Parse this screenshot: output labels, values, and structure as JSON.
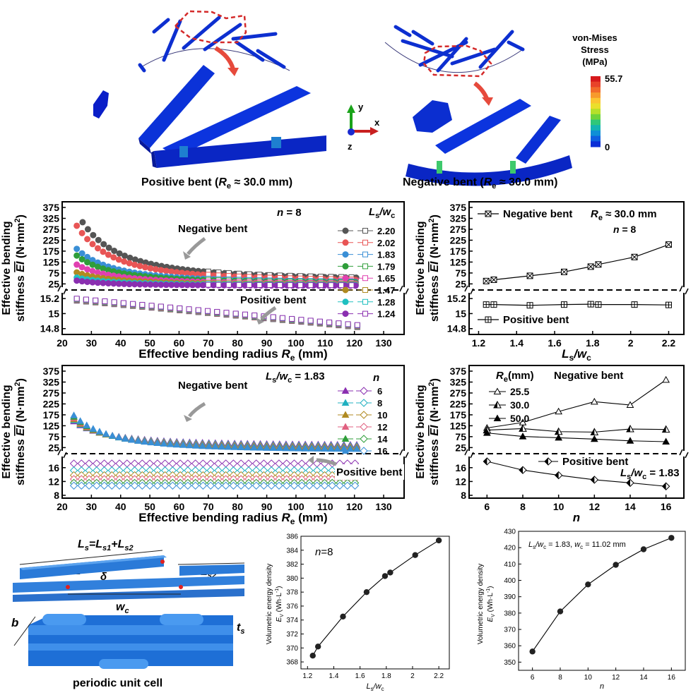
{
  "top": {
    "caption_left": "Positive bent (Re ≈ 30.0 mm)",
    "caption_left_parts": [
      "Positive bent (",
      "R",
      "e",
      " ≈ 30.0 mm)"
    ],
    "caption_right_parts": [
      "Negative bent (",
      "R",
      "e",
      " ≈ 30.0 mm)"
    ],
    "axes": {
      "y": "y",
      "x": "x",
      "z": "z"
    },
    "colorbar": {
      "title_lines": [
        "von-Mises",
        "Stress",
        "(MPa)"
      ],
      "max_label": "55.7",
      "min_label": "0",
      "colors": [
        "#d7191c",
        "#e8432a",
        "#f26b2a",
        "#f79a2c",
        "#fbc531",
        "#eadf2c",
        "#b6e02a",
        "#6fd33a",
        "#2fc77a",
        "#13b3b3",
        "#0f8fd6",
        "#0f5fe0",
        "#0b2ed6"
      ]
    }
  },
  "colors": {
    "s220": "#555555",
    "s202": "#e85555",
    "s183": "#3a8fd6",
    "s179": "#2f9e3a",
    "s165": "#e040b0",
    "s147": "#b08a20",
    "s128": "#20c0c0",
    "s124": "#8a2fb0",
    "n6": "#8a2fb0",
    "n8": "#20b0c0",
    "n10": "#b08a20",
    "n12": "#e06080",
    "n14": "#2f9e3a",
    "n16": "#3a8fd6",
    "line": "#000000"
  },
  "chart_data": [
    {
      "type": "scatter",
      "id": "A",
      "ylabel_lines": [
        "Effective bending",
        "stiffness EI (N·mm2)"
      ],
      "xlabel": "Effective bending radius Re (mm)",
      "annotation": "n = 8",
      "legend_title": "Ls/wc",
      "legend": [
        "2.20",
        "2.02",
        "1.83",
        "1.79",
        "1.65",
        "1.47",
        "1.28",
        "1.24"
      ],
      "upper_label": "Negative bent",
      "lower_label": "Positive bent",
      "x_ticks": [
        20,
        30,
        40,
        50,
        60,
        70,
        80,
        90,
        100,
        110,
        120,
        130
      ],
      "upper_ticks": [
        25,
        75,
        125,
        175,
        225,
        275,
        325,
        375
      ],
      "lower_ticks": [
        14.8,
        15.0,
        15.2
      ],
      "xlim": [
        20,
        137
      ],
      "upper_ylim": [
        10,
        375
      ],
      "lower_ylim": [
        14.76,
        15.22
      ],
      "upper_series": [
        {
          "name": "2.20",
          "a": 6500,
          "c": 40,
          "x0": 27
        },
        {
          "name": "2.02",
          "a": 5400,
          "c": 32,
          "x0": 25
        },
        {
          "name": "1.83",
          "a": 3300,
          "c": 27,
          "x0": 25
        },
        {
          "name": "1.79",
          "a": 2700,
          "c": 25,
          "x0": 25
        },
        {
          "name": "1.65",
          "a": 1900,
          "c": 22,
          "x0": 25
        },
        {
          "name": "1.47",
          "a": 1200,
          "c": 20,
          "x0": 25
        },
        {
          "name": "1.28",
          "a": 750,
          "c": 18,
          "x0": 25
        },
        {
          "name": "1.24",
          "a": 500,
          "c": 16,
          "x0": 25
        }
      ],
      "lower_series": {
        "x0": 25,
        "x1": 122,
        "y0": 15.185,
        "y1": 14.83
      }
    },
    {
      "type": "line",
      "id": "B",
      "ylabel_lines": [
        "Effective bending",
        "stiffness EI (N·mm2)"
      ],
      "xlabel": "Ls/wc",
      "annotation_lines": [
        "Re ≈ 30.0 mm",
        "n = 8"
      ],
      "upper_label": "Negative bent",
      "lower_label": "Positive bent",
      "x": [
        1.24,
        1.28,
        1.47,
        1.65,
        1.79,
        1.83,
        2.02,
        2.2
      ],
      "x_ticks": [
        1.2,
        1.4,
        1.6,
        1.8,
        2.0,
        2.2
      ],
      "xlim": [
        1.15,
        2.28
      ],
      "upper_ticks": [
        25,
        75,
        125,
        175,
        225,
        275,
        325,
        375
      ],
      "lower_ticks": [
        14.8,
        15.0,
        15.2
      ],
      "upper_ylim": [
        10,
        375
      ],
      "lower_ylim": [
        14.76,
        15.22
      ],
      "series": [
        {
          "name": "Negative bent",
          "values": [
            38,
            44,
            62,
            80,
            104,
            114,
            148,
            205
          ]
        },
        {
          "name": "Positive bent",
          "values": [
            15.12,
            15.12,
            15.11,
            15.12,
            15.125,
            15.12,
            15.12,
            15.115
          ]
        }
      ]
    },
    {
      "type": "scatter",
      "id": "C",
      "ylabel_lines": [
        "Effective bending",
        "stiffness EI (N·mm2)"
      ],
      "xlabel": "Effective bending radius Re (mm)",
      "annotation": "Ls/wc = 1.83",
      "legend_title": "n",
      "legend": [
        "6",
        "8",
        "10",
        "12",
        "14",
        "16"
      ],
      "upper_label": "Negative bent",
      "lower_label": "Positive bent",
      "x_ticks": [
        20,
        30,
        40,
        50,
        60,
        70,
        80,
        90,
        100,
        110,
        120,
        130
      ],
      "upper_ticks": [
        25,
        75,
        125,
        175,
        225,
        275,
        325,
        375
      ],
      "lower_ticks": [
        8,
        12,
        16
      ],
      "xlim": [
        20,
        137
      ],
      "upper_ylim": [
        10,
        375
      ],
      "lower_ylim": [
        8,
        18
      ],
      "upper_series": [
        {
          "name": "6",
          "a": 2300,
          "c": 33
        },
        {
          "name": "8",
          "a": 2500,
          "c": 28
        },
        {
          "name": "10",
          "a": 2700,
          "c": 23
        },
        {
          "name": "12",
          "a": 2900,
          "c": 19
        },
        {
          "name": "14",
          "a": 3100,
          "c": 15
        },
        {
          "name": "16",
          "a": 3300,
          "c": 12
        }
      ],
      "lower_series": [
        {
          "name": "6",
          "value": 17.2
        },
        {
          "name": "8",
          "value": 15.2
        },
        {
          "name": "10",
          "value": 13.8
        },
        {
          "name": "12",
          "value": 12.7
        },
        {
          "name": "14",
          "value": 11.6
        },
        {
          "name": "16",
          "value": 10.8
        }
      ]
    },
    {
      "type": "line",
      "id": "D",
      "ylabel_lines": [
        "Effective bending",
        "stiffness EI (N·mm2)"
      ],
      "xlabel": "n",
      "legend_title": "Re(mm)",
      "upper_label": "Negative bent",
      "lower_label": "Positive bent",
      "annotation": "Ls/wc = 1.83",
      "x": [
        6,
        8,
        10,
        12,
        14,
        16
      ],
      "x_ticks": [
        6,
        8,
        10,
        12,
        14,
        16
      ],
      "xlim": [
        5,
        17
      ],
      "upper_ticks": [
        25,
        75,
        125,
        175,
        225,
        275,
        325,
        375
      ],
      "lower_ticks": [
        8,
        12,
        16
      ],
      "upper_ylim": [
        10,
        375
      ],
      "lower_ylim": [
        8,
        18
      ],
      "series": [
        {
          "name": "25.5",
          "values": [
            115,
            140,
            190,
            235,
            220,
            335
          ]
        },
        {
          "name": "30.0",
          "values": [
            105,
            112,
            98,
            96,
            110,
            108
          ]
        },
        {
          "name": "50.0",
          "values": [
            92,
            76,
            70,
            64,
            56,
            52
          ]
        },
        {
          "name": "Positive bent",
          "values": [
            17.8,
            15.3,
            13.8,
            12.5,
            11.6,
            10.6
          ]
        }
      ]
    },
    {
      "type": "line",
      "id": "E",
      "annotation": "n=8",
      "ylabel_lines": [
        "Volumetric energy density",
        "EV (Wh·L-1)"
      ],
      "xlabel": "Ls/wc",
      "x": [
        1.24,
        1.28,
        1.47,
        1.65,
        1.79,
        1.83,
        2.02,
        2.2
      ],
      "values": [
        368.9,
        370.2,
        374.5,
        378.0,
        380.3,
        380.8,
        383.3,
        385.4
      ],
      "x_ticks": [
        1.2,
        1.4,
        1.6,
        1.8,
        2.0,
        2.2
      ],
      "y_ticks": [
        368,
        370,
        372,
        374,
        376,
        378,
        380,
        382,
        384,
        386
      ],
      "xlim": [
        1.15,
        2.28
      ],
      "ylim": [
        367,
        386
      ]
    },
    {
      "type": "line",
      "id": "F",
      "annotation": "Ls/wc = 1.83, wc = 11.02 mm",
      "ylabel_lines": [
        "Volumetric energy density",
        "EV (Wh·L-1)"
      ],
      "xlabel": "n",
      "x": [
        6,
        8,
        10,
        12,
        14,
        16
      ],
      "values": [
        356.5,
        381.0,
        397.5,
        409.5,
        419.0,
        426.0
      ],
      "x_ticks": [
        6,
        8,
        10,
        12,
        14,
        16
      ],
      "y_ticks": [
        350,
        360,
        370,
        380,
        390,
        400,
        410,
        420,
        430
      ],
      "xlim": [
        5,
        17
      ],
      "ylim": [
        345,
        430
      ]
    }
  ],
  "unit_cell": {
    "formula": "Ls=Ls1+Ls2",
    "labels": {
      "ls1": "Ls1",
      "ls2": "Ls2",
      "delta": "δ",
      "wc": "wc",
      "b": "b",
      "ts": "ts"
    },
    "caption": "periodic unit cell"
  }
}
